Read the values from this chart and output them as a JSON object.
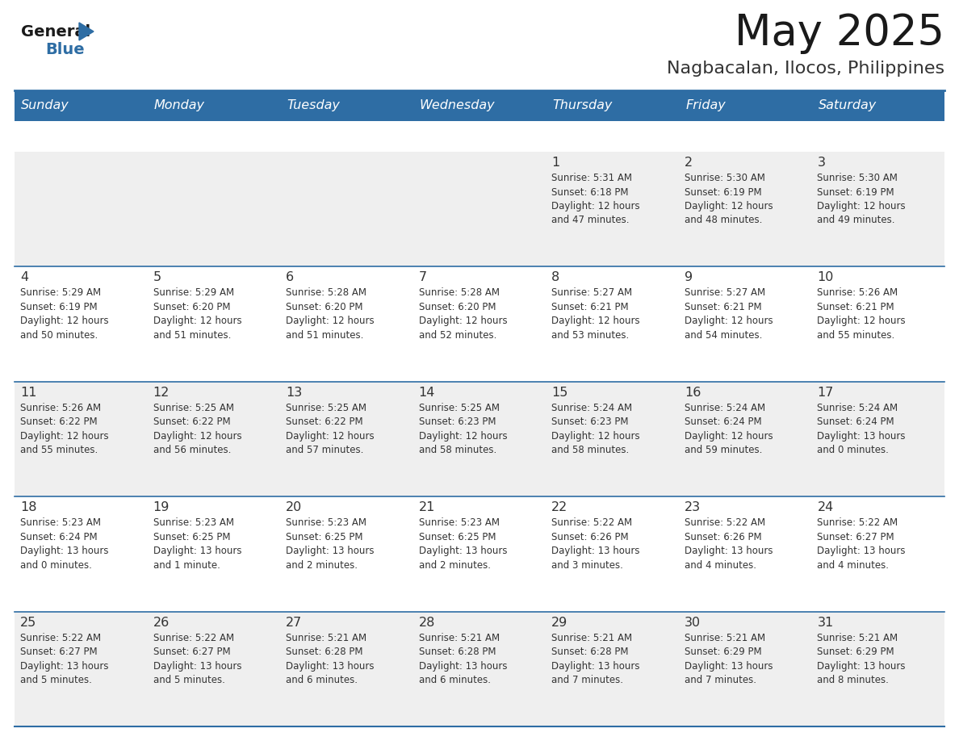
{
  "title": "May 2025",
  "subtitle": "Nagbacalan, Ilocos, Philippines",
  "days_of_week": [
    "Sunday",
    "Monday",
    "Tuesday",
    "Wednesday",
    "Thursday",
    "Friday",
    "Saturday"
  ],
  "header_bg": "#2E6DA4",
  "header_text_color": "#FFFFFF",
  "cell_bg_light": "#EFEFEF",
  "cell_bg_white": "#FFFFFF",
  "row_divider_color": "#2E6DA4",
  "text_color": "#333333",
  "title_color": "#1a1a1a",
  "subtitle_color": "#333333",
  "logo_general_color": "#1a1a1a",
  "logo_blue_color": "#2E6DA4",
  "weeks": [
    [
      {
        "day": null,
        "info": null
      },
      {
        "day": null,
        "info": null
      },
      {
        "day": null,
        "info": null
      },
      {
        "day": null,
        "info": null
      },
      {
        "day": 1,
        "info": "Sunrise: 5:31 AM\nSunset: 6:18 PM\nDaylight: 12 hours\nand 47 minutes."
      },
      {
        "day": 2,
        "info": "Sunrise: 5:30 AM\nSunset: 6:19 PM\nDaylight: 12 hours\nand 48 minutes."
      },
      {
        "day": 3,
        "info": "Sunrise: 5:30 AM\nSunset: 6:19 PM\nDaylight: 12 hours\nand 49 minutes."
      }
    ],
    [
      {
        "day": 4,
        "info": "Sunrise: 5:29 AM\nSunset: 6:19 PM\nDaylight: 12 hours\nand 50 minutes."
      },
      {
        "day": 5,
        "info": "Sunrise: 5:29 AM\nSunset: 6:20 PM\nDaylight: 12 hours\nand 51 minutes."
      },
      {
        "day": 6,
        "info": "Sunrise: 5:28 AM\nSunset: 6:20 PM\nDaylight: 12 hours\nand 51 minutes."
      },
      {
        "day": 7,
        "info": "Sunrise: 5:28 AM\nSunset: 6:20 PM\nDaylight: 12 hours\nand 52 minutes."
      },
      {
        "day": 8,
        "info": "Sunrise: 5:27 AM\nSunset: 6:21 PM\nDaylight: 12 hours\nand 53 minutes."
      },
      {
        "day": 9,
        "info": "Sunrise: 5:27 AM\nSunset: 6:21 PM\nDaylight: 12 hours\nand 54 minutes."
      },
      {
        "day": 10,
        "info": "Sunrise: 5:26 AM\nSunset: 6:21 PM\nDaylight: 12 hours\nand 55 minutes."
      }
    ],
    [
      {
        "day": 11,
        "info": "Sunrise: 5:26 AM\nSunset: 6:22 PM\nDaylight: 12 hours\nand 55 minutes."
      },
      {
        "day": 12,
        "info": "Sunrise: 5:25 AM\nSunset: 6:22 PM\nDaylight: 12 hours\nand 56 minutes."
      },
      {
        "day": 13,
        "info": "Sunrise: 5:25 AM\nSunset: 6:22 PM\nDaylight: 12 hours\nand 57 minutes."
      },
      {
        "day": 14,
        "info": "Sunrise: 5:25 AM\nSunset: 6:23 PM\nDaylight: 12 hours\nand 58 minutes."
      },
      {
        "day": 15,
        "info": "Sunrise: 5:24 AM\nSunset: 6:23 PM\nDaylight: 12 hours\nand 58 minutes."
      },
      {
        "day": 16,
        "info": "Sunrise: 5:24 AM\nSunset: 6:24 PM\nDaylight: 12 hours\nand 59 minutes."
      },
      {
        "day": 17,
        "info": "Sunrise: 5:24 AM\nSunset: 6:24 PM\nDaylight: 13 hours\nand 0 minutes."
      }
    ],
    [
      {
        "day": 18,
        "info": "Sunrise: 5:23 AM\nSunset: 6:24 PM\nDaylight: 13 hours\nand 0 minutes."
      },
      {
        "day": 19,
        "info": "Sunrise: 5:23 AM\nSunset: 6:25 PM\nDaylight: 13 hours\nand 1 minute."
      },
      {
        "day": 20,
        "info": "Sunrise: 5:23 AM\nSunset: 6:25 PM\nDaylight: 13 hours\nand 2 minutes."
      },
      {
        "day": 21,
        "info": "Sunrise: 5:23 AM\nSunset: 6:25 PM\nDaylight: 13 hours\nand 2 minutes."
      },
      {
        "day": 22,
        "info": "Sunrise: 5:22 AM\nSunset: 6:26 PM\nDaylight: 13 hours\nand 3 minutes."
      },
      {
        "day": 23,
        "info": "Sunrise: 5:22 AM\nSunset: 6:26 PM\nDaylight: 13 hours\nand 4 minutes."
      },
      {
        "day": 24,
        "info": "Sunrise: 5:22 AM\nSunset: 6:27 PM\nDaylight: 13 hours\nand 4 minutes."
      }
    ],
    [
      {
        "day": 25,
        "info": "Sunrise: 5:22 AM\nSunset: 6:27 PM\nDaylight: 13 hours\nand 5 minutes."
      },
      {
        "day": 26,
        "info": "Sunrise: 5:22 AM\nSunset: 6:27 PM\nDaylight: 13 hours\nand 5 minutes."
      },
      {
        "day": 27,
        "info": "Sunrise: 5:21 AM\nSunset: 6:28 PM\nDaylight: 13 hours\nand 6 minutes."
      },
      {
        "day": 28,
        "info": "Sunrise: 5:21 AM\nSunset: 6:28 PM\nDaylight: 13 hours\nand 6 minutes."
      },
      {
        "day": 29,
        "info": "Sunrise: 5:21 AM\nSunset: 6:28 PM\nDaylight: 13 hours\nand 7 minutes."
      },
      {
        "day": 30,
        "info": "Sunrise: 5:21 AM\nSunset: 6:29 PM\nDaylight: 13 hours\nand 7 minutes."
      },
      {
        "day": 31,
        "info": "Sunrise: 5:21 AM\nSunset: 6:29 PM\nDaylight: 13 hours\nand 8 minutes."
      }
    ]
  ]
}
